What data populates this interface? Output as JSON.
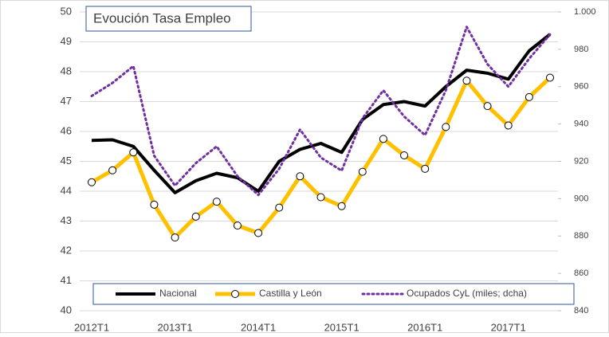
{
  "chart_data": {
    "type": "line",
    "title": "Evoución Tasa Empleo",
    "categories": [
      "2012T1",
      null,
      null,
      null,
      "2013T1",
      null,
      null,
      null,
      "2014T1",
      null,
      null,
      null,
      "2015T1",
      null,
      null,
      null,
      "2016T1",
      null,
      null,
      null,
      "2017T1",
      null,
      null
    ],
    "series": [
      {
        "name": "Nacional",
        "color": "#000000",
        "values": [
          45.7,
          45.72,
          45.5,
          44.7,
          43.95,
          44.35,
          44.6,
          44.45,
          44.0,
          45.0,
          45.4,
          45.6,
          45.3,
          46.4,
          46.9,
          47.0,
          46.85,
          47.5,
          48.05,
          47.95,
          47.75,
          48.7,
          49.25
        ]
      },
      {
        "name": "Castilla y León",
        "color": "#ffc000",
        "values": [
          44.3,
          44.7,
          45.3,
          43.55,
          42.45,
          43.15,
          43.65,
          42.85,
          42.6,
          43.45,
          44.5,
          43.8,
          43.5,
          44.65,
          45.75,
          45.2,
          44.75,
          46.15,
          47.7,
          46.85,
          46.2,
          47.15,
          47.8
        ]
      },
      {
        "name": "Ocupados CyL (miles; dcha)",
        "color": "#7030a0",
        "axis": "y2",
        "values": [
          955,
          962,
          971,
          923,
          907,
          919,
          928,
          912,
          902,
          916,
          937,
          922,
          915,
          943,
          958,
          944,
          934,
          958,
          992,
          972,
          960,
          975,
          988
        ]
      }
    ],
    "ylim": [
      40,
      50
    ],
    "yticks": [
      40,
      41,
      42,
      43,
      44,
      45,
      46,
      47,
      48,
      49,
      50
    ],
    "y2lim": [
      840,
      1000
    ],
    "y2ticks": [
      840,
      860,
      880,
      900,
      920,
      940,
      960,
      980,
      {
        "value": 1000,
        "label": "1.000"
      }
    ],
    "grid": true
  }
}
